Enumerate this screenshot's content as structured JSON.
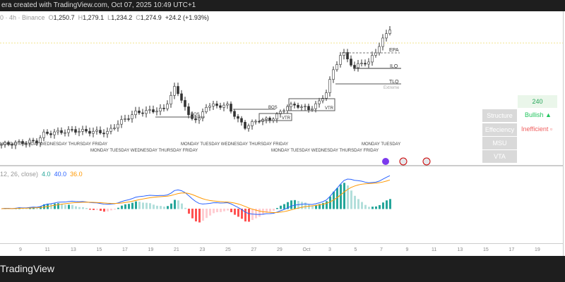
{
  "topbar": {
    "text": "era created with TradingView.com, Oct 07, 2025 10:49 UTC+1"
  },
  "legend": {
    "prefix": "0 · 4h · Binance",
    "o_label": "O",
    "open": "1,250.7",
    "h_label": "H",
    "high": "1,279.1",
    "l_label": "L",
    "low": "1,234.2",
    "c_label": "C",
    "close": "1,274.9",
    "change": "+24.2 (+1.93%)"
  },
  "annotations": {
    "bos": "BOS",
    "vtr1": "VTR",
    "vtr2": "VTR",
    "epa": "EPA",
    "ilq": "ILQ",
    "tlq": "TLQ",
    "extreme": "Extreme",
    "bos2": "BOS"
  },
  "weekday_labels": [
    "MONDAY TUESDAY WEDNESDAY THURSDAY FRIDAY",
    "MONDAY TUESDAY WEDNESDAY THURSDAY FRIDAY",
    "MONDAY TUESDAY WEDNESDAY THURSDAY FRIDAY",
    "MONDAY TUESDAY WEDNESDAY THURSDAY FRIDAY",
    "MONDAY TUESDAY"
  ],
  "panel": {
    "timeframe": "240",
    "rows": [
      {
        "label": "Structure",
        "value": "Bullish ▲",
        "color": "#22c55e"
      },
      {
        "label": "Effeciency",
        "value": "Inefficient ▫",
        "color": "#f06060"
      },
      {
        "label": "MSU",
        "value": ""
      },
      {
        "label": "VTA",
        "value": ""
      }
    ]
  },
  "macd": {
    "params": "12, 26, close)",
    "hist": "4.0",
    "macd": "40.0",
    "signal": "36.0"
  },
  "time_axis": [
    "9",
    "11",
    "13",
    "15",
    "17",
    "19",
    "21",
    "23",
    "25",
    "27",
    "29",
    "Oct",
    "3",
    "5",
    "7",
    "9",
    "11",
    "13",
    "15",
    "17",
    "19"
  ],
  "brand": "TradingView",
  "chart_data": {
    "type": "candlestick",
    "keypoints": [
      [
        0,
        900
      ],
      [
        10,
        911
      ],
      [
        12,
        935
      ],
      [
        20,
        946
      ],
      [
        30,
        939
      ],
      [
        33,
        969
      ],
      [
        38,
        1004
      ],
      [
        46,
        1015
      ],
      [
        49,
        1084
      ],
      [
        51,
        1050
      ],
      [
        53,
        992
      ],
      [
        56,
        981
      ],
      [
        58,
        1027
      ],
      [
        60,
        1027
      ],
      [
        64,
        1027
      ],
      [
        67,
        981
      ],
      [
        69,
        958
      ],
      [
        73,
        981
      ],
      [
        76,
        981
      ],
      [
        79,
        1004
      ],
      [
        81,
        1027
      ],
      [
        84,
        1027
      ],
      [
        87,
        1015
      ],
      [
        90,
        1038
      ],
      [
        92,
        1073
      ],
      [
        94,
        1142
      ],
      [
        96,
        1192
      ],
      [
        97,
        1195
      ],
      [
        99,
        1165
      ],
      [
        100,
        1149
      ],
      [
        102,
        1169
      ],
      [
        104,
        1165
      ],
      [
        105,
        1188
      ],
      [
        107,
        1222
      ],
      [
        109,
        1262
      ],
      [
        110,
        1280
      ]
    ]
  }
}
